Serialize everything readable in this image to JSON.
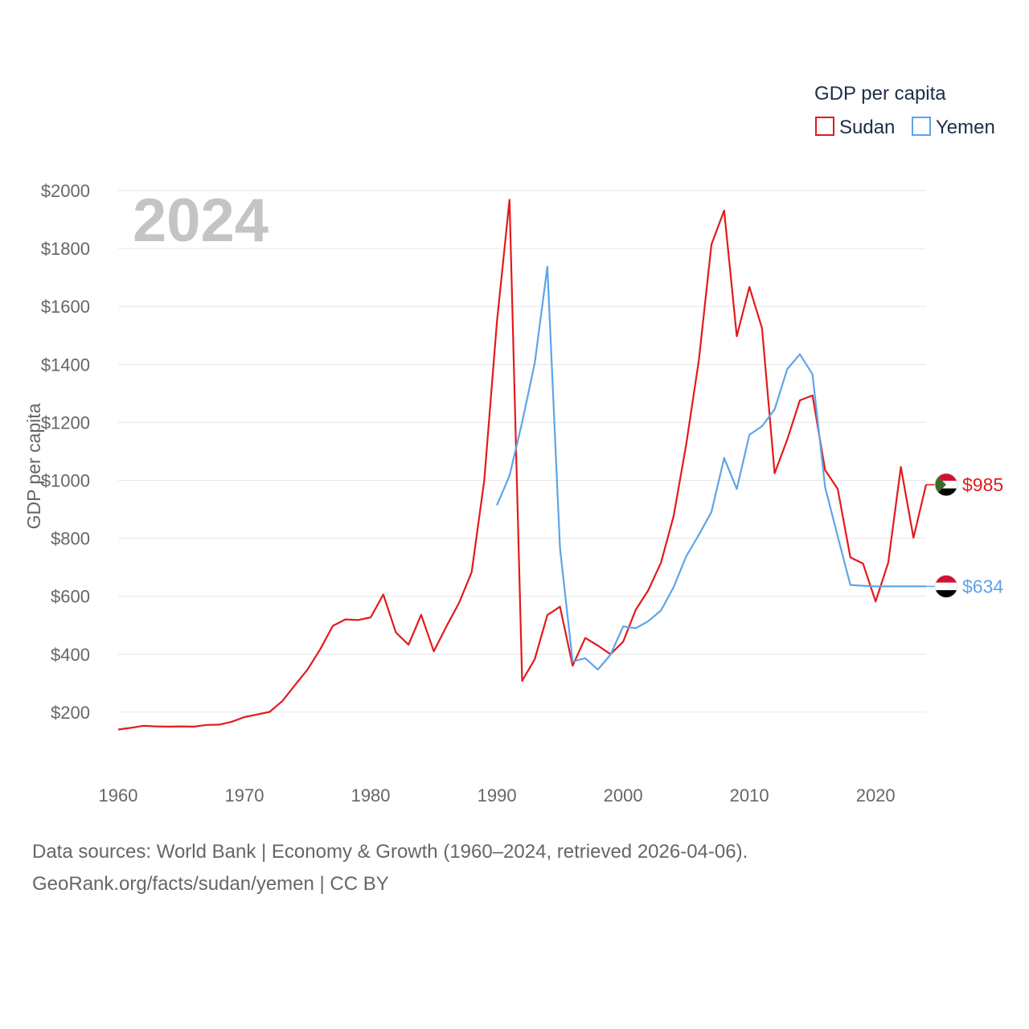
{
  "chart_data": {
    "type": "line",
    "year_label": "2024",
    "ylabel": "GDP per capita",
    "legend": {
      "title": "GDP per capita",
      "placement": "top-right"
    },
    "xlim": [
      1960,
      2024
    ],
    "ylim": [
      0,
      2000
    ],
    "x_ticks": [
      1960,
      1970,
      1980,
      1990,
      2000,
      2010,
      2020
    ],
    "y_ticks": [
      200,
      400,
      600,
      800,
      1000,
      1200,
      1400,
      1600,
      1800,
      2000
    ],
    "y_tick_labels": [
      "$200",
      "$400",
      "$600",
      "$800",
      "$1000",
      "$1200",
      "$1400",
      "$1600",
      "$1800",
      "$2000"
    ],
    "series": [
      {
        "name": "Sudan",
        "color": "#e31a1c",
        "end_label": "$985",
        "flag": "sudan-flag",
        "x": [
          1960,
          1961,
          1962,
          1963,
          1964,
          1965,
          1966,
          1967,
          1968,
          1969,
          1970,
          1971,
          1972,
          1973,
          1974,
          1975,
          1976,
          1977,
          1978,
          1979,
          1980,
          1981,
          1982,
          1983,
          1984,
          1985,
          1986,
          1987,
          1988,
          1989,
          1990,
          1991,
          1992,
          1993,
          1994,
          1995,
          1996,
          1997,
          1998,
          1999,
          2000,
          2001,
          2002,
          2003,
          2004,
          2005,
          2006,
          2007,
          2008,
          2009,
          2010,
          2011,
          2012,
          2013,
          2014,
          2015,
          2016,
          2017,
          2018,
          2019,
          2020,
          2021,
          2022,
          2023,
          2024
        ],
        "values": [
          140,
          146,
          153,
          151,
          150,
          151,
          150,
          156,
          157,
          167,
          183,
          192,
          201,
          238,
          293,
          347,
          417,
          498,
          520,
          518,
          527,
          606,
          475,
          433,
          536,
          410,
          496,
          577,
          683,
          1000,
          1545,
          1968,
          308,
          383,
          535,
          564,
          360,
          456,
          430,
          400,
          443,
          553,
          621,
          716,
          876,
          1124,
          1414,
          1814,
          1931,
          1497,
          1667,
          1525,
          1024,
          1141,
          1276,
          1293,
          1035,
          970,
          734,
          713,
          582,
          716,
          1046,
          802,
          985
        ]
      },
      {
        "name": "Yemen",
        "color": "#5da5e8",
        "end_label": "$634",
        "flag": "yemen-flag",
        "x": [
          1990,
          1991,
          1992,
          1993,
          1994,
          1995,
          1996,
          1997,
          1998,
          1999,
          2000,
          2001,
          2002,
          2003,
          2004,
          2005,
          2006,
          2007,
          2008,
          2009,
          2010,
          2011,
          2012,
          2013,
          2014,
          2015,
          2016,
          2017,
          2018,
          2019,
          2020,
          2021,
          2022,
          2023,
          2024
        ],
        "values": [
          914,
          1016,
          1200,
          1405,
          1737,
          766,
          375,
          386,
          347,
          398,
          496,
          490,
          514,
          551,
          631,
          738,
          812,
          891,
          1077,
          970,
          1157,
          1187,
          1245,
          1384,
          1435,
          1366,
          976,
          806,
          639,
          636,
          634,
          634,
          634,
          634,
          634
        ]
      }
    ]
  },
  "footer": {
    "line1": "Data sources: World Bank | Economy & Growth (1960–2024, retrieved 2026-04-06).",
    "line2": "GeoRank.org/facts/sudan/yemen | CC BY"
  }
}
